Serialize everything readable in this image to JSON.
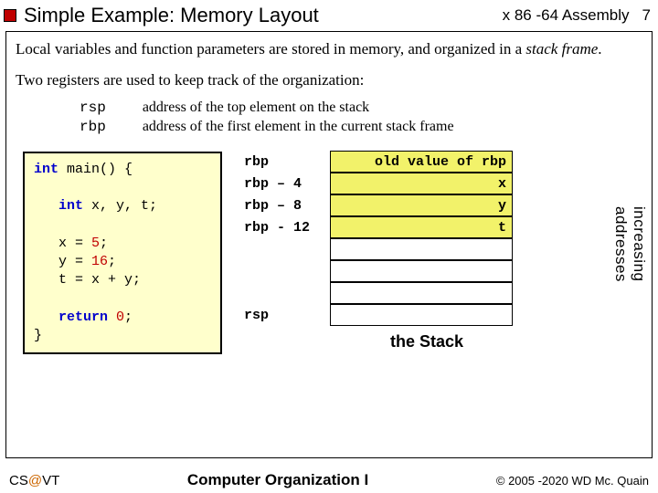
{
  "header": {
    "title": "Simple Example:  Memory Layout",
    "topic": "x 86 -64 Assembly",
    "pagenum": "7"
  },
  "body": {
    "para1_a": "Local variables and function parameters are stored in memory, and organized in a ",
    "para1_b": "stack frame",
    "para1_c": ".",
    "para2": "Two registers are used to keep track of the organization:",
    "registers": {
      "r1": "rsp",
      "r2": "rbp",
      "d1": "address of the top element on the stack",
      "d2": "address of the first element in the current stack frame"
    }
  },
  "code": {
    "l1a": "int",
    "l1b": " main() {",
    "l2a": "   int",
    "l2b": " x, y, t;",
    "l3a": "   x = ",
    "l3n": "5",
    "l3b": ";",
    "l4a": "   y = ",
    "l4n": "16",
    "l4b": ";",
    "l5": "   t = x + y;",
    "l6a": "   return ",
    "l6n": "0",
    "l6b": ";",
    "l7": "}"
  },
  "stack": {
    "rows": [
      {
        "label": "rbp",
        "value": "old value of rbp",
        "yellow": true
      },
      {
        "label": "rbp – 4",
        "value": "x",
        "yellow": true
      },
      {
        "label": "rbp – 8",
        "value": "y",
        "yellow": true
      },
      {
        "label": "rbp - 12",
        "value": "t",
        "yellow": true
      },
      {
        "label": "",
        "value": "",
        "yellow": false
      },
      {
        "label": "",
        "value": "",
        "yellow": false
      },
      {
        "label": "",
        "value": "",
        "yellow": false
      },
      {
        "label": "rsp",
        "value": "",
        "yellow": false
      }
    ],
    "caption": "the Stack",
    "sidelabel": "increasing addresses"
  },
  "footer": {
    "left_a": "CS",
    "left_at": "@",
    "left_b": "VT",
    "center": "Computer Organization I",
    "right": "© 2005 -2020 WD Mc. Quain"
  },
  "colors": {
    "bullet": "#c00000",
    "code_bg": "#ffffcc",
    "cell_yellow": "#f2f26a",
    "keyword": "#0000cc",
    "number": "#c00000",
    "at_color": "#cc6600"
  }
}
